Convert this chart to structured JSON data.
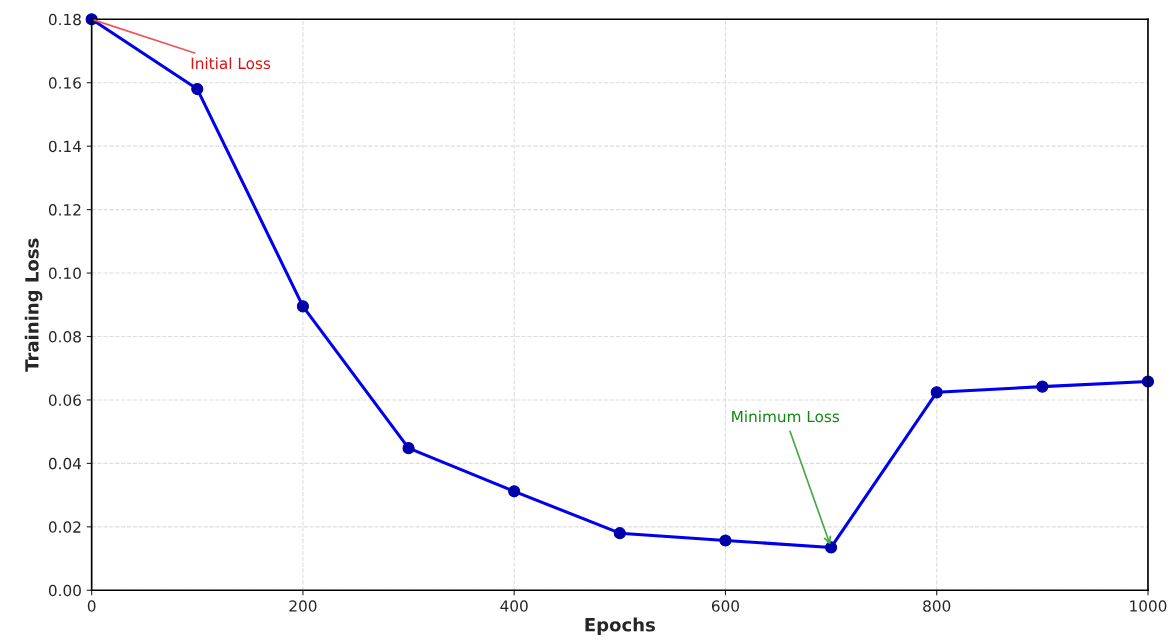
{
  "chart_data": {
    "type": "line",
    "xlabel": "Epochs",
    "ylabel": "Training Loss",
    "x": [
      0,
      100,
      200,
      300,
      400,
      500,
      600,
      700,
      800,
      900,
      1000
    ],
    "series": [
      {
        "color": "#0000ee",
        "values": [
          0.18,
          0.158,
          0.0895,
          0.0448,
          0.0312,
          0.018,
          0.0157,
          0.0135,
          0.0624,
          0.0642,
          0.0658
        ]
      }
    ],
    "xlim": [
      0,
      1000
    ],
    "xticks": [
      0,
      200,
      400,
      600,
      800,
      1000
    ],
    "ylim": [
      0,
      0.18
    ],
    "yticks": [
      {
        "value": 0,
        "label": "0.00"
      },
      {
        "value": 0.02,
        "label": "0.02"
      },
      {
        "value": 0.04,
        "label": "0.04"
      },
      {
        "value": 0.06,
        "label": "0.06"
      },
      {
        "value": 0.08,
        "label": "0.08"
      },
      {
        "value": 0.1,
        "label": "0.10"
      },
      {
        "value": 0.12,
        "label": "0.12"
      },
      {
        "value": 0.14,
        "label": "0.14"
      },
      {
        "value": 0.16,
        "label": "0.16"
      },
      {
        "value": 0.18,
        "label": "0.18"
      }
    ],
    "grid": true,
    "marker": "circle",
    "line_style": "solid",
    "annotations": [
      {
        "text": "Initial Loss",
        "x": 0,
        "y": 0.18
      },
      {
        "text": "Minimum Loss",
        "x": 700,
        "y": 0.0135
      }
    ]
  }
}
